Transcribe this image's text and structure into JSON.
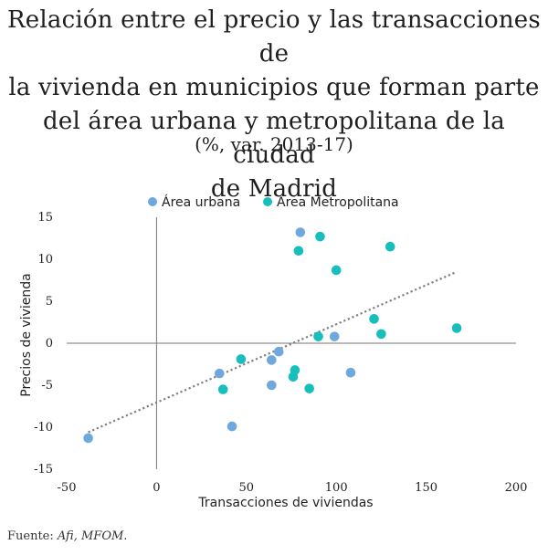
{
  "title_line1": "Relación entre el precio y las transacciones de",
  "title_line2": "la vivienda en municipios que forman parte",
  "title_line3": "del área urbana y metropolitana de la ciudad",
  "title_line4": "de Madrid",
  "subtitle": "(%, var. 2013-17)",
  "source_prefix": "Fuente: ",
  "source_italic": "Afi, MFOM",
  "source_suffix": ".",
  "colors": {
    "urbana": "#6fa8dc",
    "metropolitana": "#17bebb",
    "trend": "#808080"
  },
  "chart_data": {
    "type": "scatter",
    "xlabel": "Transacciones de viviendas",
    "ylabel": "Precios de vivienda",
    "xlim": [
      -50,
      200
    ],
    "ylim": [
      -15,
      15
    ],
    "xticks": [
      "-50",
      "0",
      "50",
      "100",
      "150",
      "200"
    ],
    "yticks": [
      "15",
      "10",
      "5",
      "0",
      "-5",
      "-10",
      "-15"
    ],
    "legend_position": "top",
    "series": [
      {
        "name": "Área urbana",
        "points": [
          [
            -38,
            -11.3
          ],
          [
            35,
            -3.6
          ],
          [
            42,
            -9.9
          ],
          [
            64,
            -2
          ],
          [
            64,
            -5
          ],
          [
            68,
            -1
          ],
          [
            80,
            13.2
          ],
          [
            99,
            0.8
          ],
          [
            108,
            -3.5
          ]
        ]
      },
      {
        "name": "Área Metropolitana",
        "points": [
          [
            37,
            -5.5
          ],
          [
            47,
            -1.9
          ],
          [
            76,
            -4
          ],
          [
            77,
            -3.2
          ],
          [
            79,
            11
          ],
          [
            85,
            -5.4
          ],
          [
            90,
            0.8
          ],
          [
            91,
            12.7
          ],
          [
            100,
            8.7
          ],
          [
            121,
            2.9
          ],
          [
            125,
            1.1
          ],
          [
            130,
            11.5
          ],
          [
            167,
            1.8
          ]
        ]
      }
    ],
    "trendline": {
      "style": "dotted",
      "from": [
        -38,
        -10.6
      ],
      "to": [
        167,
        8.5
      ]
    }
  }
}
